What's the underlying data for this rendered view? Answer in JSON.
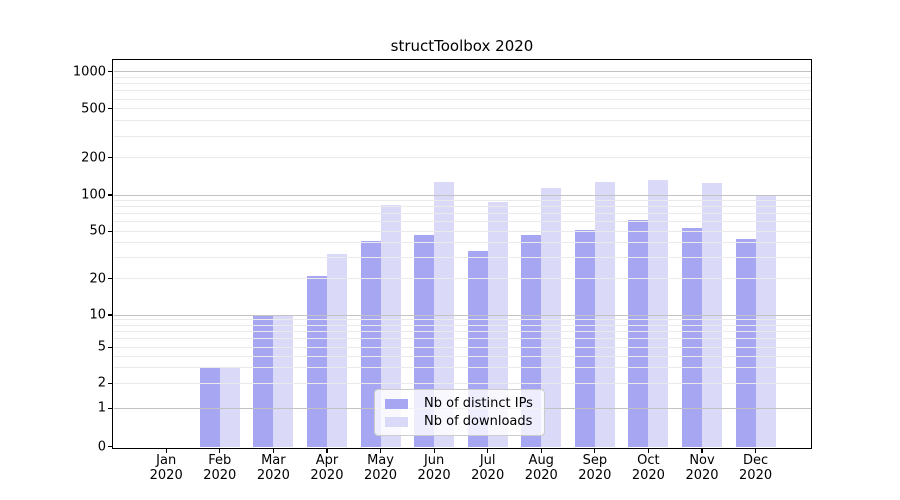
{
  "chart_data": {
    "type": "bar",
    "title": "structToolbox 2020",
    "categories": [
      "Jan 2020",
      "Feb 2020",
      "Mar 2020",
      "Apr 2020",
      "May 2020",
      "Jun 2020",
      "Jul 2020",
      "Aug 2020",
      "Sep 2020",
      "Oct 2020",
      "Nov 2020",
      "Dec 2020"
    ],
    "series": [
      {
        "name": "Nb of distinct IPs",
        "color": "#a6a6f2",
        "values": [
          0,
          3,
          10,
          21,
          41,
          46,
          34,
          46,
          51,
          62,
          53,
          43
        ]
      },
      {
        "name": "Nb of downloads",
        "color": "#dadaf8",
        "values": [
          0,
          3,
          10,
          32,
          83,
          128,
          88,
          114,
          128,
          133,
          124,
          100
        ]
      }
    ],
    "y_ticks": [
      0,
      1,
      2,
      5,
      10,
      20,
      50,
      100,
      200,
      500,
      1000
    ],
    "y_scale": "symlog",
    "ylim": [
      0,
      1000
    ],
    "grid": true,
    "legend_position": "lower-center"
  },
  "colors": {
    "major_grid": "#c2c2c2",
    "minor_grid": "#eaeaea",
    "axis": "#000000",
    "legend_border": "#cccccc"
  }
}
